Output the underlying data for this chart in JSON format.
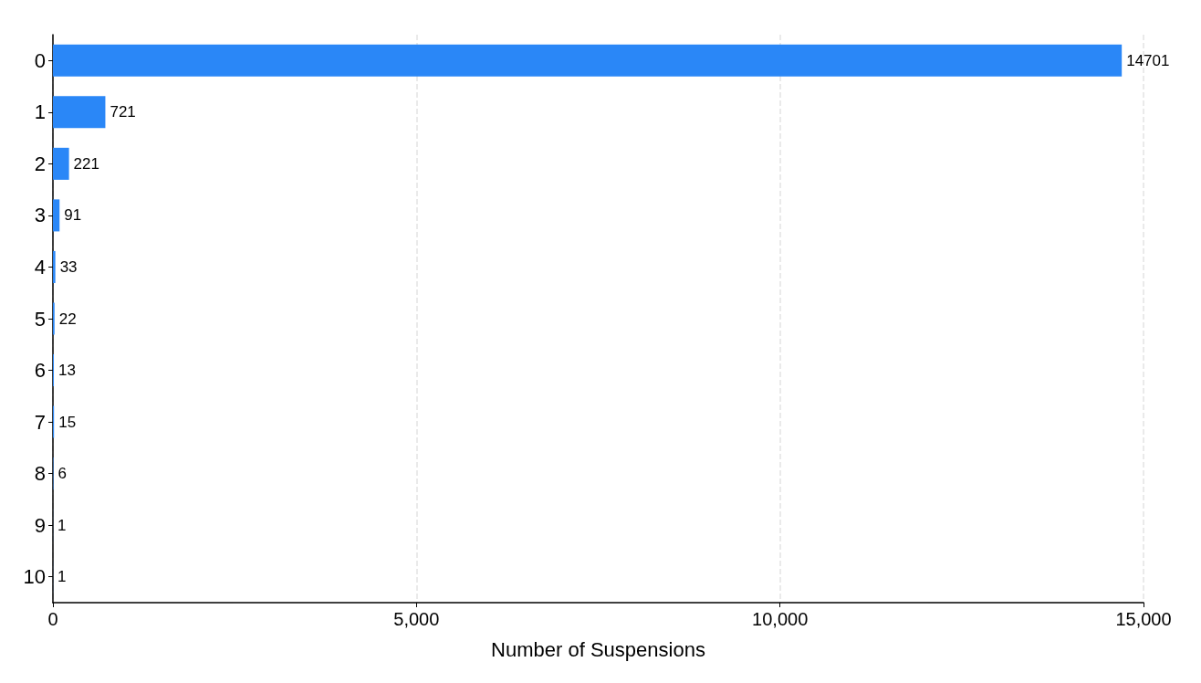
{
  "chart_data": {
    "type": "bar",
    "orientation": "horizontal",
    "xlabel": "Number of Suspensions",
    "categories": [
      "0",
      "1",
      "2",
      "3",
      "4",
      "5",
      "6",
      "7",
      "8",
      "9",
      "10"
    ],
    "values": [
      14701,
      721,
      221,
      91,
      33,
      22,
      13,
      15,
      6,
      1,
      1
    ],
    "color": "#2a87f7",
    "data_labels": true,
    "xlim": [
      0,
      15000
    ],
    "xticks": [
      0,
      {
        "value": 5000,
        "label": "5,000"
      },
      {
        "value": 10000,
        "label": "10,000"
      },
      {
        "value": 15000,
        "label": "15,000"
      }
    ],
    "grid": "x"
  }
}
